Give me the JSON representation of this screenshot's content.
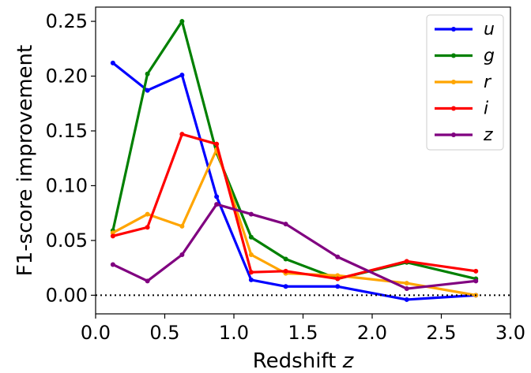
{
  "chart_data": {
    "type": "line",
    "xlabel": "Redshift",
    "xlabel_var": "z",
    "ylabel": "F1-score improvement",
    "xlim": [
      0.0,
      3.0
    ],
    "ylim": [
      -0.017,
      0.263
    ],
    "x_ticks": [
      0.0,
      0.5,
      1.0,
      1.5,
      2.0,
      2.5,
      3.0
    ],
    "x_tick_labels": [
      "0.0",
      "0.5",
      "1.0",
      "1.5",
      "2.0",
      "2.5",
      "3.0"
    ],
    "y_ticks": [
      0.0,
      0.05,
      0.1,
      0.15,
      0.2,
      0.25
    ],
    "y_tick_labels": [
      "0.00",
      "0.05",
      "0.10",
      "0.15",
      "0.20",
      "0.25"
    ],
    "grid": false,
    "legend_position": "top-right",
    "reference_line": {
      "y": 0.0,
      "style": "dotted",
      "color": "#000000"
    },
    "x": [
      0.125,
      0.375,
      0.625,
      0.875,
      1.125,
      1.375,
      1.75,
      2.25,
      2.75
    ],
    "series": [
      {
        "name": "u",
        "color": "#0000ff",
        "values": [
          0.212,
          0.187,
          0.201,
          0.09,
          0.014,
          0.008,
          0.008,
          -0.004,
          0.0
        ]
      },
      {
        "name": "g",
        "color": "#008000",
        "values": [
          0.059,
          0.202,
          0.25,
          0.13,
          0.053,
          0.033,
          0.015,
          0.03,
          0.015
        ]
      },
      {
        "name": "r",
        "color": "#ffa500",
        "values": [
          0.057,
          0.074,
          0.063,
          0.133,
          0.037,
          0.02,
          0.018,
          0.011,
          0.0
        ]
      },
      {
        "name": "i",
        "color": "#ff0000",
        "values": [
          0.054,
          0.062,
          0.147,
          0.138,
          0.021,
          0.022,
          0.015,
          0.031,
          0.022
        ]
      },
      {
        "name": "z",
        "color": "#800080",
        "values": [
          0.028,
          0.013,
          0.037,
          0.083,
          0.074,
          0.065,
          0.035,
          0.006,
          0.013
        ]
      }
    ]
  }
}
